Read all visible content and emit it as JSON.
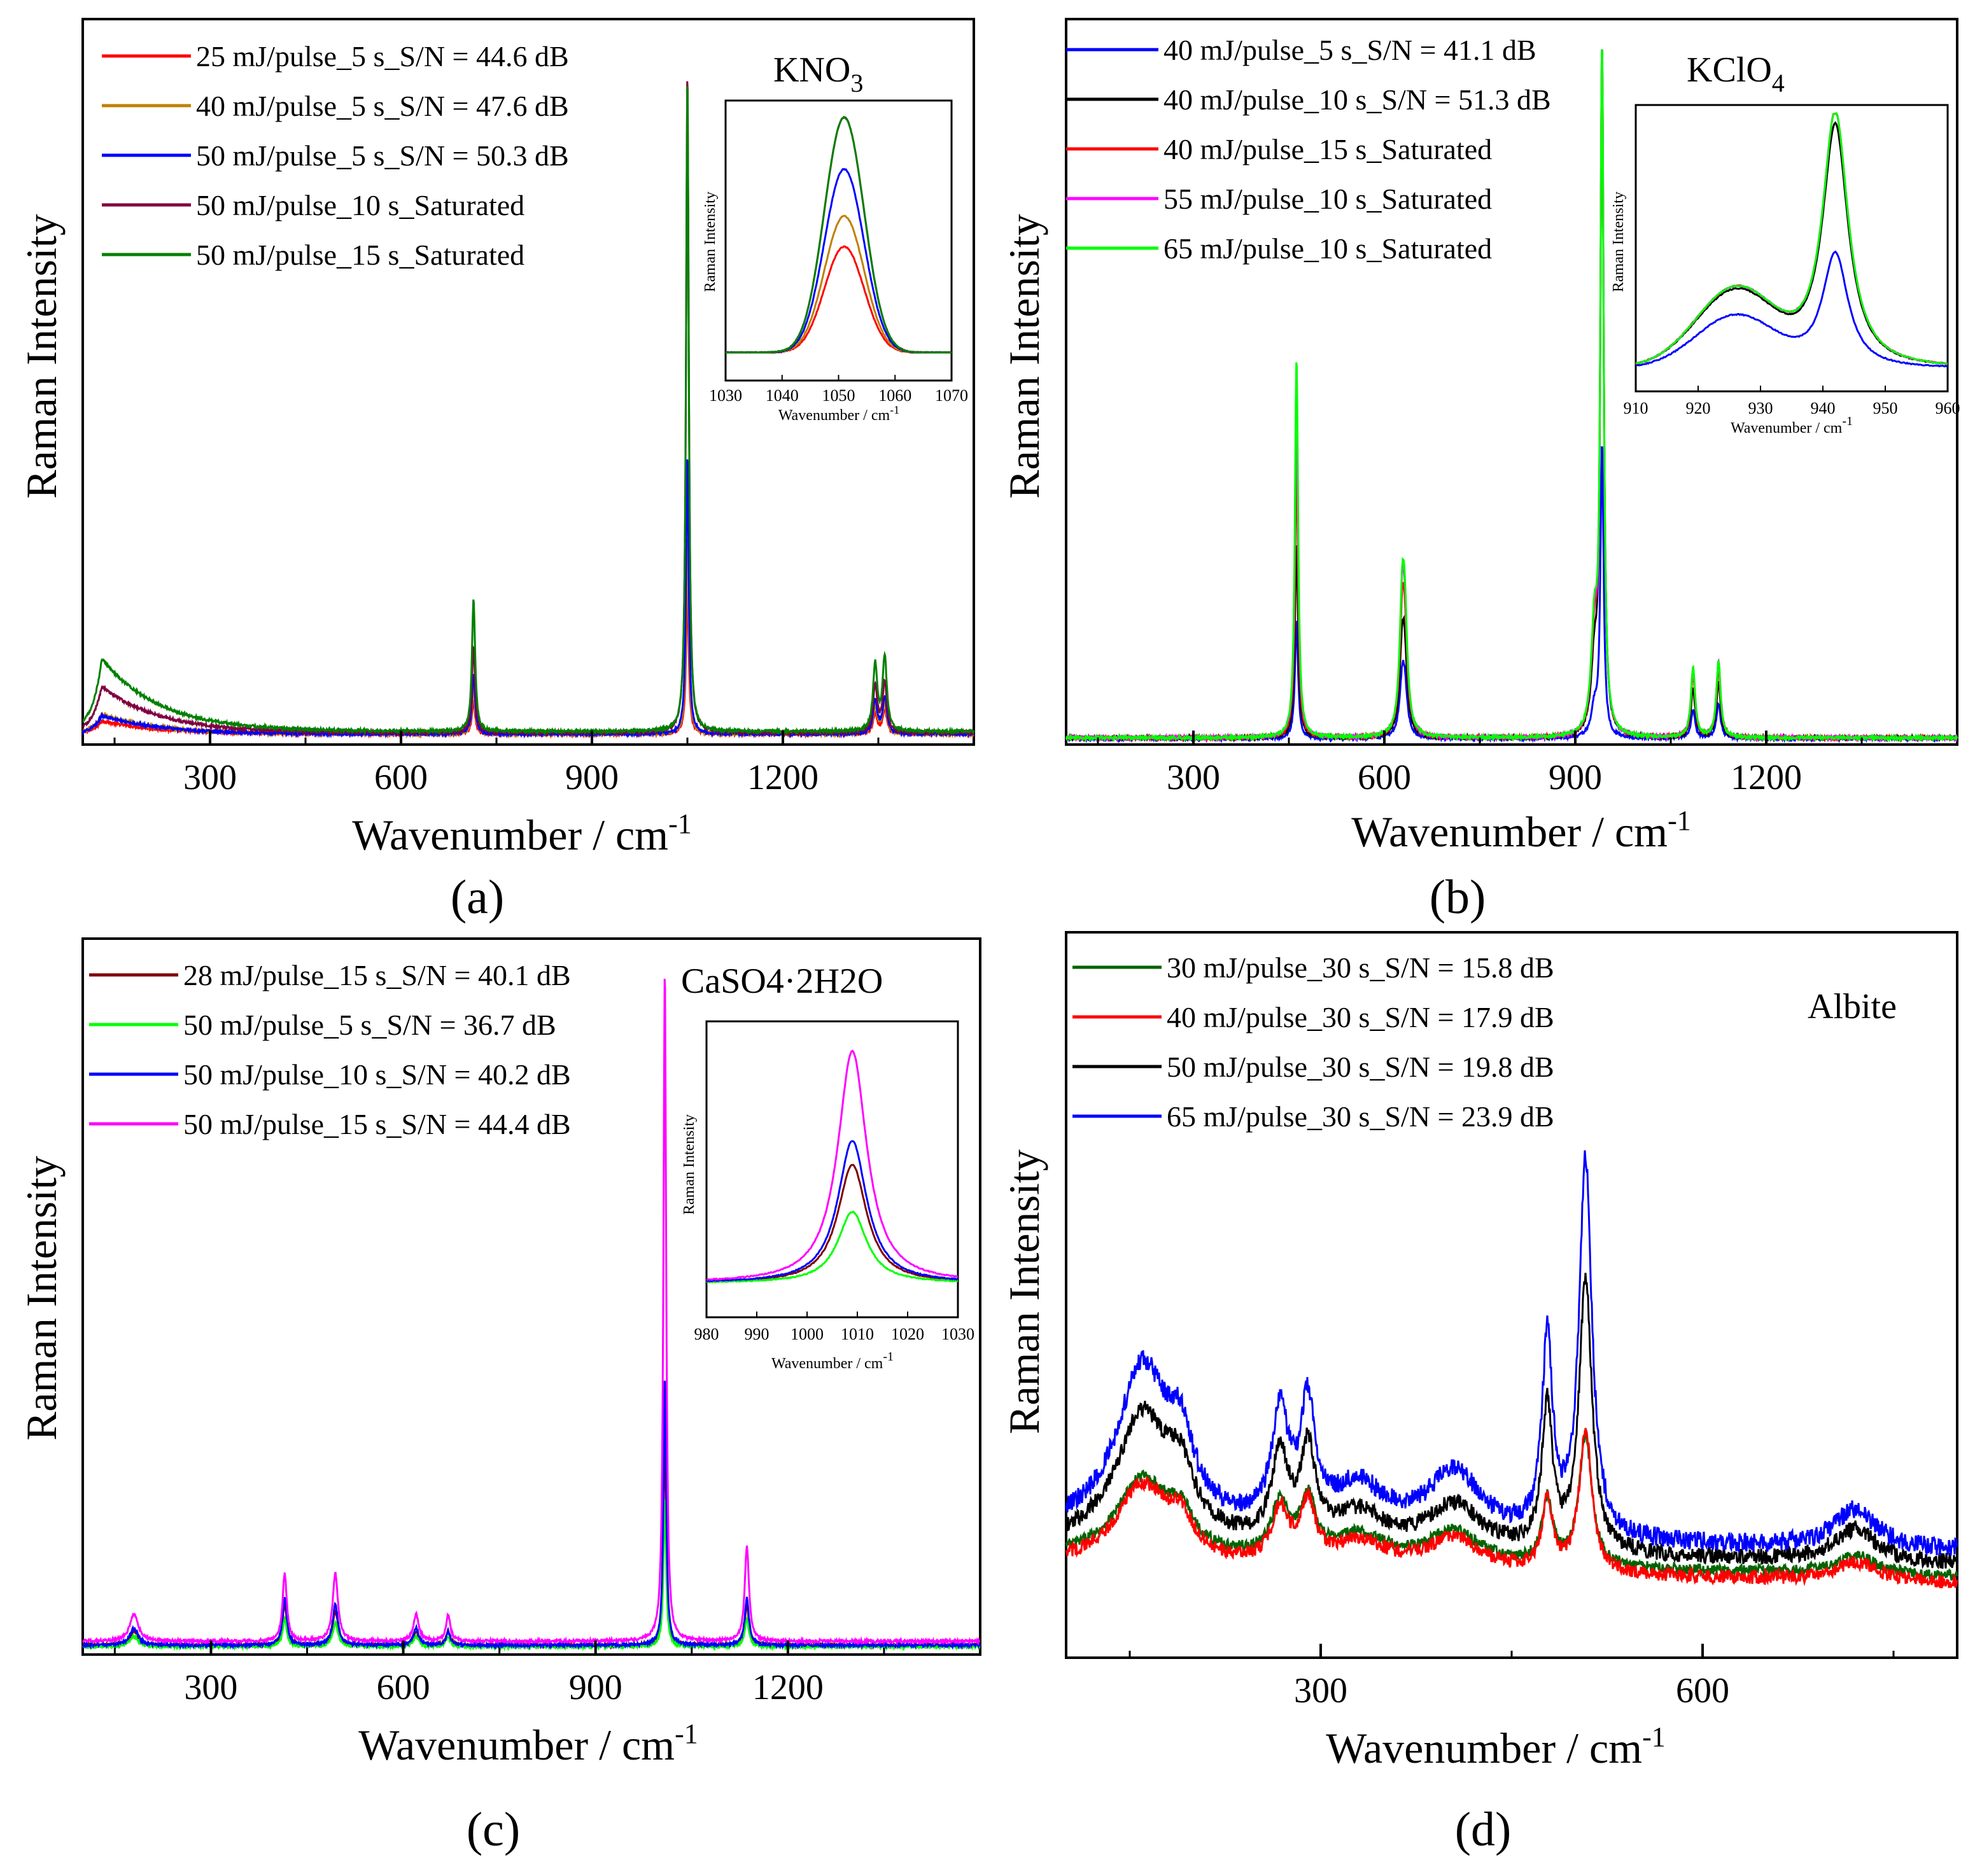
{
  "figure": {
    "caption_labels": [
      "(a)",
      "(b)",
      "(c)",
      "(d)"
    ]
  },
  "chart_data": [
    {
      "id": "a",
      "type": "line",
      "panel_label": "(a)",
      "title": "KNO3",
      "title_main": "KNO",
      "title_sub": "3",
      "xlabel": "Wavenumber / cm",
      "xlabel_sup": "-1",
      "ylabel": "Raman Intensity",
      "xlim": [
        100,
        1500
      ],
      "xticks": [
        300,
        600,
        900,
        1200
      ],
      "ylim": [
        0,
        1
      ],
      "y_ticks_shown": false,
      "grid": false,
      "legend_position": "top-left",
      "series": [
        {
          "name": "25 mJ/pulse_5 s_S/N = 44.6 dB",
          "color": "#ff0000",
          "baseline": 0.012,
          "hump": 0.02,
          "peaks": [
            [
              714,
              0.05,
              3
            ],
            [
              1050,
              0.22,
              2.5
            ],
            [
              1345,
              0.03,
              4
            ],
            [
              1360,
              0.035,
              4
            ]
          ]
        },
        {
          "name": "40 mJ/pulse_5 s_S/N = 47.6 dB",
          "color": "#c08000",
          "baseline": 0.012,
          "hump": 0.03,
          "peaks": [
            [
              714,
              0.07,
              3
            ],
            [
              1050,
              0.3,
              2.5
            ],
            [
              1345,
              0.04,
              4
            ],
            [
              1360,
              0.045,
              4
            ]
          ]
        },
        {
          "name": "50 mJ/pulse_5 s_S/N = 50.3 dB",
          "color": "#0000ff",
          "baseline": 0.012,
          "hump": 0.028,
          "peaks": [
            [
              714,
              0.09,
              3
            ],
            [
              1050,
              0.42,
              2.5
            ],
            [
              1345,
              0.05,
              4
            ],
            [
              1360,
              0.055,
              4
            ]
          ]
        },
        {
          "name": "50 mJ/pulse_10 s_Saturated",
          "color": "#800040",
          "baseline": 0.014,
          "hump": 0.07,
          "peaks": [
            [
              714,
              0.13,
              3
            ],
            [
              1050,
              1.0,
              2.5
            ],
            [
              1345,
              0.07,
              4
            ],
            [
              1360,
              0.075,
              4
            ]
          ]
        },
        {
          "name": "50 mJ/pulse_15 s_Saturated",
          "color": "#008000",
          "baseline": 0.016,
          "hump": 0.11,
          "peaks": [
            [
              714,
              0.2,
              3
            ],
            [
              1050,
              0.99,
              2.5
            ],
            [
              1345,
              0.1,
              4
            ],
            [
              1360,
              0.11,
              4
            ]
          ]
        }
      ],
      "inset": {
        "xlabel": "Wavenumber / cm",
        "xlabel_sup": "-1",
        "ylabel": "Raman Intensity",
        "xlim": [
          1030,
          1070
        ],
        "xticks": [
          1030,
          1040,
          1050,
          1060,
          1070
        ],
        "center": 1051,
        "width": 3.5,
        "heights": [
          0.45,
          0.58,
          0.78,
          1.0,
          1.0
        ],
        "clip": [
          null,
          null,
          null,
          1.0,
          1.0
        ]
      }
    },
    {
      "id": "b",
      "type": "line",
      "panel_label": "(b)",
      "title": "KClO4",
      "title_main": "KClO",
      "title_sub": "4",
      "xlabel": "Wavenumber / cm",
      "xlabel_sup": "-1",
      "ylabel": "Raman Intensity",
      "xlim": [
        100,
        1500
      ],
      "xticks": [
        300,
        600,
        900,
        1200
      ],
      "ylim": [
        0,
        1
      ],
      "y_ticks_shown": false,
      "grid": false,
      "legend_position": "top-left",
      "series": [
        {
          "name": "40 mJ/pulse_5 s_S/N = 41.1 dB",
          "color": "#0000ff",
          "baseline": 0.005,
          "hump": 0,
          "peaks": [
            [
              462,
              0.17,
              3
            ],
            [
              628,
              0.07,
              5
            ],
            [
              632,
              0.06,
              5
            ],
            [
              930,
              0.04,
              6
            ],
            [
              942,
              0.42,
              3
            ],
            [
              1085,
              0.04,
              4
            ],
            [
              1125,
              0.05,
              4
            ]
          ]
        },
        {
          "name": "40 mJ/pulse_10 s_S/N = 51.3 dB",
          "color": "#000000",
          "baseline": 0.006,
          "hump": 0,
          "peaks": [
            [
              462,
              0.28,
              3
            ],
            [
              628,
              0.11,
              5
            ],
            [
              632,
              0.09,
              5
            ],
            [
              930,
              0.1,
              6
            ],
            [
              942,
              0.99,
              3
            ],
            [
              1085,
              0.07,
              4
            ],
            [
              1125,
              0.08,
              4
            ]
          ]
        },
        {
          "name": "40 mJ/pulse_15 s_Saturated",
          "color": "#ff0000",
          "baseline": 0.006,
          "hump": 0,
          "peaks": [
            [
              462,
              0.4,
              3
            ],
            [
              628,
              0.14,
              5
            ],
            [
              632,
              0.12,
              5
            ],
            [
              930,
              0.13,
              6
            ],
            [
              942,
              1.0,
              3
            ],
            [
              1085,
              0.09,
              4
            ],
            [
              1125,
              0.1,
              4
            ]
          ]
        },
        {
          "name": "55 mJ/pulse_10 s_Saturated",
          "color": "#ff00ff",
          "baseline": 0.006,
          "hump": 0,
          "peaks": [
            [
              462,
              0.48,
              3
            ],
            [
              628,
              0.16,
              5
            ],
            [
              632,
              0.13,
              5
            ],
            [
              930,
              0.14,
              6
            ],
            [
              942,
              1.0,
              3
            ],
            [
              1085,
              0.1,
              4
            ],
            [
              1125,
              0.11,
              4
            ]
          ]
        },
        {
          "name": "65 mJ/pulse_10 s_Saturated",
          "color": "#00ff00",
          "baseline": 0.006,
          "hump": 0,
          "peaks": [
            [
              462,
              0.55,
              3
            ],
            [
              628,
              0.16,
              5
            ],
            [
              632,
              0.14,
              5
            ],
            [
              930,
              0.15,
              6
            ],
            [
              942,
              1.0,
              3
            ],
            [
              1085,
              0.1,
              4
            ],
            [
              1125,
              0.11,
              4
            ]
          ]
        }
      ],
      "inset": {
        "xlabel": "Wavenumber / cm",
        "xlabel_sup": "-1",
        "ylabel": "Raman Intensity",
        "xlim": [
          910,
          960
        ],
        "xticks": [
          910,
          920,
          930,
          940,
          950,
          960
        ],
        "center": 942,
        "width": 2.5,
        "heights": [
          0.45,
          0.95,
          1.0,
          1.0,
          1.0
        ],
        "clip": [
          null,
          null,
          1.0,
          1.0,
          1.0
        ]
      }
    },
    {
      "id": "c",
      "type": "line",
      "panel_label": "(c)",
      "title": "CaSO4·2H2O",
      "xlabel": "Wavenumber / cm",
      "xlabel_sup": "-1",
      "ylabel": "Raman Intensity",
      "xlim": [
        100,
        1500
      ],
      "xticks": [
        300,
        600,
        900,
        1200
      ],
      "ylim": [
        0,
        1
      ],
      "y_ticks_shown": false,
      "grid": false,
      "legend_position": "top-left",
      "series": [
        {
          "name": "28 mJ/pulse_15 s_S/N = 40.1 dB",
          "color": "#800000",
          "baseline": 0.01,
          "hump": 0,
          "peaks": [
            [
              180,
              0.02,
              8
            ],
            [
              415,
              0.06,
              4
            ],
            [
              494,
              0.05,
              5
            ],
            [
              620,
              0.02,
              5
            ],
            [
              670,
              0.02,
              4
            ],
            [
              1008,
              0.32,
              2.5
            ],
            [
              1136,
              0.06,
              4
            ]
          ]
        },
        {
          "name": "50 mJ/pulse_5 s_S/N = 36.7 dB",
          "color": "#00ff00",
          "baseline": 0.008,
          "hump": 0,
          "peaks": [
            [
              180,
              0.015,
              8
            ],
            [
              415,
              0.04,
              4
            ],
            [
              494,
              0.035,
              5
            ],
            [
              620,
              0.015,
              5
            ],
            [
              670,
              0.015,
              4
            ],
            [
              1008,
              0.22,
              2.5
            ],
            [
              1136,
              0.04,
              4
            ]
          ]
        },
        {
          "name": "50 mJ/pulse_10 s_S/N = 40.2 dB",
          "color": "#0000ff",
          "baseline": 0.01,
          "hump": 0,
          "peaks": [
            [
              180,
              0.025,
              8
            ],
            [
              415,
              0.07,
              4
            ],
            [
              494,
              0.06,
              5
            ],
            [
              620,
              0.025,
              5
            ],
            [
              670,
              0.02,
              4
            ],
            [
              1008,
              0.4,
              2.5
            ],
            [
              1136,
              0.07,
              4
            ]
          ]
        },
        {
          "name": "50 mJ/pulse_15 s_S/N = 44.4 dB",
          "color": "#ff00ff",
          "baseline": 0.016,
          "hump": 0,
          "peaks": [
            [
              180,
              0.04,
              8
            ],
            [
              415,
              0.1,
              4
            ],
            [
              494,
              0.1,
              5
            ],
            [
              620,
              0.04,
              5
            ],
            [
              670,
              0.04,
              4
            ],
            [
              1008,
              1.0,
              2.5
            ],
            [
              1136,
              0.14,
              4
            ]
          ]
        }
      ],
      "inset": {
        "xlabel": "Wavenumber / cm",
        "xlabel_sup": "-1",
        "ylabel": "Raman Intensity",
        "xlim": [
          980,
          1030
        ],
        "xticks": [
          980,
          990,
          1000,
          1010,
          1020,
          1030
        ],
        "center": 1009,
        "width": 3.5,
        "heights": [
          0.5,
          0.3,
          0.6,
          0.98
        ],
        "clip": [
          null,
          null,
          null,
          null
        ]
      }
    },
    {
      "id": "d",
      "type": "line",
      "panel_label": "(d)",
      "title": "Albite",
      "xlabel": "Wavenumber / cm",
      "xlabel_sup": "-1",
      "ylabel": "Raman Intensity",
      "xlim": [
        100,
        800
      ],
      "xticks": [
        300,
        600
      ],
      "ylim": [
        0,
        1
      ],
      "y_ticks_shown": false,
      "grid": false,
      "legend_position": "top-left",
      "series": [
        {
          "name": "30 mJ/pulse_30 s_S/N = 15.8 dB",
          "color": "#006400",
          "baseline": 0.12,
          "peaks": [
            [
              160,
              0.12,
              25
            ],
            [
              190,
              0.05,
              12
            ],
            [
              268,
              0.08,
              8
            ],
            [
              290,
              0.09,
              7
            ],
            [
              330,
              0.04,
              25
            ],
            [
              405,
              0.05,
              25
            ],
            [
              478,
              0.1,
              5
            ],
            [
              508,
              0.2,
              6
            ],
            [
              720,
              0.03,
              20
            ]
          ]
        },
        {
          "name": "40 mJ/pulse_30 s_S/N = 17.9 dB",
          "color": "#ff0000",
          "baseline": 0.11,
          "peaks": [
            [
              160,
              0.12,
              25
            ],
            [
              190,
              0.05,
              12
            ],
            [
              268,
              0.08,
              8
            ],
            [
              290,
              0.09,
              7
            ],
            [
              330,
              0.04,
              25
            ],
            [
              405,
              0.05,
              25
            ],
            [
              478,
              0.11,
              5
            ],
            [
              508,
              0.22,
              6
            ],
            [
              720,
              0.03,
              20
            ]
          ]
        },
        {
          "name": "50 mJ/pulse_30 s_S/N = 19.8 dB",
          "color": "#000000",
          "baseline": 0.14,
          "peaks": [
            [
              160,
              0.2,
              25
            ],
            [
              190,
              0.08,
              12
            ],
            [
              268,
              0.13,
              8
            ],
            [
              290,
              0.14,
              7
            ],
            [
              330,
              0.05,
              25
            ],
            [
              405,
              0.07,
              25
            ],
            [
              478,
              0.22,
              5
            ],
            [
              508,
              0.42,
              6
            ],
            [
              720,
              0.05,
              20
            ]
          ]
        },
        {
          "name": "65 mJ/pulse_30 s_S/N = 23.9 dB",
          "color": "#0000ff",
          "baseline": 0.16,
          "peaks": [
            [
              160,
              0.25,
              25
            ],
            [
              190,
              0.1,
              12
            ],
            [
              268,
              0.17,
              8
            ],
            [
              290,
              0.18,
              7
            ],
            [
              330,
              0.07,
              25
            ],
            [
              405,
              0.1,
              25
            ],
            [
              478,
              0.3,
              5
            ],
            [
              508,
              0.58,
              6
            ],
            [
              720,
              0.06,
              20
            ]
          ]
        }
      ]
    }
  ]
}
